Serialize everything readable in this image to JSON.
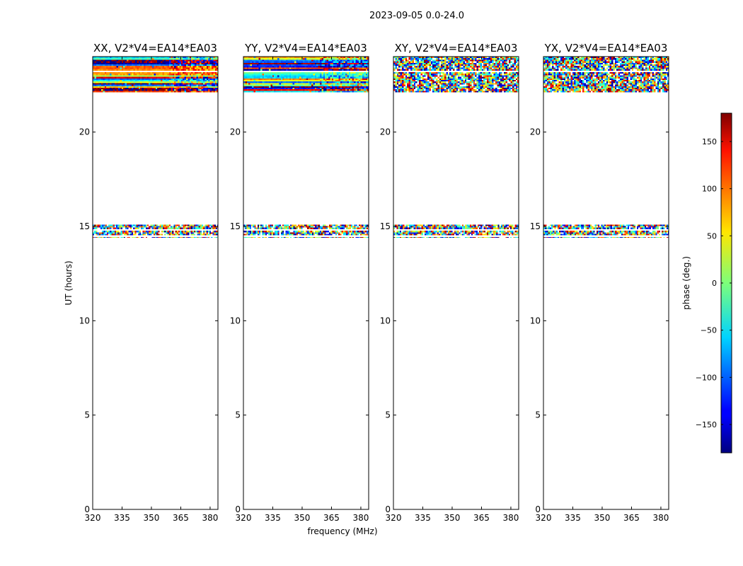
{
  "figure": {
    "suptitle": "2023-09-05 0.0-24.0",
    "xlabel": "frequency (MHz)",
    "ylabel": "UT (hours)"
  },
  "chart_data": {
    "type": "heatmap",
    "x_ticks": [
      "320",
      "335",
      "350",
      "365",
      "380"
    ],
    "y_ticks": [
      "0",
      "5",
      "10",
      "15",
      "20"
    ],
    "xlim": [
      320,
      384
    ],
    "ylim": [
      0,
      24
    ],
    "panels": [
      {
        "title": "XX, V2*V4=EA14*EA03",
        "kind": "parallel"
      },
      {
        "title": "YY, V2*V4=EA14*EA03",
        "kind": "parallel"
      },
      {
        "title": "XY, V2*V4=EA14*EA03",
        "kind": "cross"
      },
      {
        "title": "YX, V2*V4=EA14*EA03",
        "kind": "cross"
      }
    ],
    "data_blocks_ut_hours": [
      [
        14.4,
        15.1
      ],
      [
        22.1,
        24.0
      ]
    ],
    "colorbar": {
      "label": "phase (deg.)",
      "range": [
        -180,
        180
      ],
      "ticks": [
        "−150",
        "−100",
        "−50",
        "0",
        "50",
        "100",
        "150"
      ],
      "colormap": "jet"
    }
  }
}
